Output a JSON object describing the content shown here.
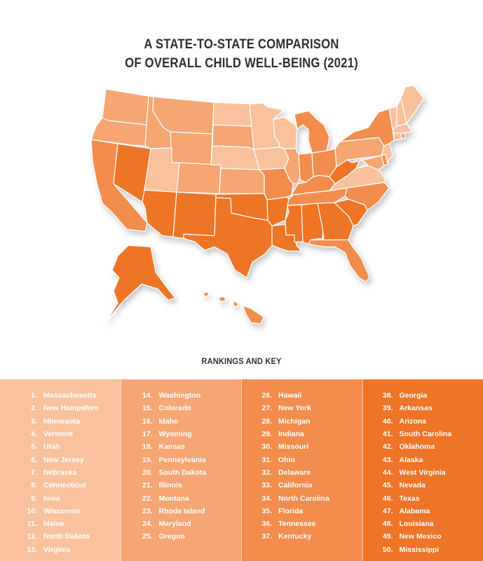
{
  "title_line1": "A STATE-TO-STATE COMPARISON",
  "title_line2": "OF OVERALL CHILD WELL-BEING (2021)",
  "key_title": "RANKINGS AND KEY",
  "colors": {
    "tier1": "#f9c29d",
    "tier2": "#f6a673",
    "tier3": "#f28d4d",
    "tier4": "#ee7428",
    "text": "#2f2f2f"
  },
  "rankings": [
    [
      {
        "rank": "1.",
        "state": "Massachusetts"
      },
      {
        "rank": "2.",
        "state": "New Hampshire"
      },
      {
        "rank": "3.",
        "state": "Minnesota"
      },
      {
        "rank": "4.",
        "state": "Vermont"
      },
      {
        "rank": "5.",
        "state": "Utah"
      },
      {
        "rank": "6.",
        "state": "New Jersey"
      },
      {
        "rank": "7.",
        "state": "Nebraska"
      },
      {
        "rank": "8.",
        "state": "Connecticut"
      },
      {
        "rank": "9.",
        "state": "Iowa"
      },
      {
        "rank": "10.",
        "state": "Wisconsin"
      },
      {
        "rank": "11.",
        "state": "Maine"
      },
      {
        "rank": "12.",
        "state": "North Dakota"
      },
      {
        "rank": "13.",
        "state": "Virginia"
      }
    ],
    [
      {
        "rank": "14.",
        "state": "Washington"
      },
      {
        "rank": "15.",
        "state": "Colorado"
      },
      {
        "rank": "16.",
        "state": "Idaho"
      },
      {
        "rank": "17.",
        "state": "Wyoming"
      },
      {
        "rank": "18.",
        "state": "Kansas"
      },
      {
        "rank": "19.",
        "state": "Pennsylvania"
      },
      {
        "rank": "20.",
        "state": "South Dakota"
      },
      {
        "rank": "21.",
        "state": "Illinois"
      },
      {
        "rank": "22.",
        "state": "Montana"
      },
      {
        "rank": "23.",
        "state": "Rhode Island"
      },
      {
        "rank": "24.",
        "state": "Maryland"
      },
      {
        "rank": "25.",
        "state": "Oregon"
      }
    ],
    [
      {
        "rank": "26.",
        "state": "Hawaii"
      },
      {
        "rank": "27.",
        "state": "New York"
      },
      {
        "rank": "28.",
        "state": "Michigan"
      },
      {
        "rank": "29.",
        "state": "Indiana"
      },
      {
        "rank": "30.",
        "state": "Missouri"
      },
      {
        "rank": "31.",
        "state": "Ohio"
      },
      {
        "rank": "32.",
        "state": "Delaware"
      },
      {
        "rank": "33.",
        "state": "California"
      },
      {
        "rank": "34.",
        "state": "North Carolina"
      },
      {
        "rank": "35.",
        "state": "Florida"
      },
      {
        "rank": "36.",
        "state": "Tennessee"
      },
      {
        "rank": "37.",
        "state": "Kentucky"
      }
    ],
    [
      {
        "rank": "38.",
        "state": "Georgia"
      },
      {
        "rank": "39.",
        "state": "Arkansas"
      },
      {
        "rank": "40.",
        "state": "Arizona"
      },
      {
        "rank": "41.",
        "state": "South Carolina"
      },
      {
        "rank": "42.",
        "state": "Oklahoma"
      },
      {
        "rank": "43.",
        "state": "Alaska"
      },
      {
        "rank": "44.",
        "state": "West Virginia"
      },
      {
        "rank": "45.",
        "state": "Nevada"
      },
      {
        "rank": "46.",
        "state": "Texas"
      },
      {
        "rank": "47.",
        "state": "Alabama"
      },
      {
        "rank": "48.",
        "state": "Louisiana"
      },
      {
        "rank": "49.",
        "state": "New Mexico"
      },
      {
        "rank": "50.",
        "state": "Mississippi"
      }
    ]
  ]
}
